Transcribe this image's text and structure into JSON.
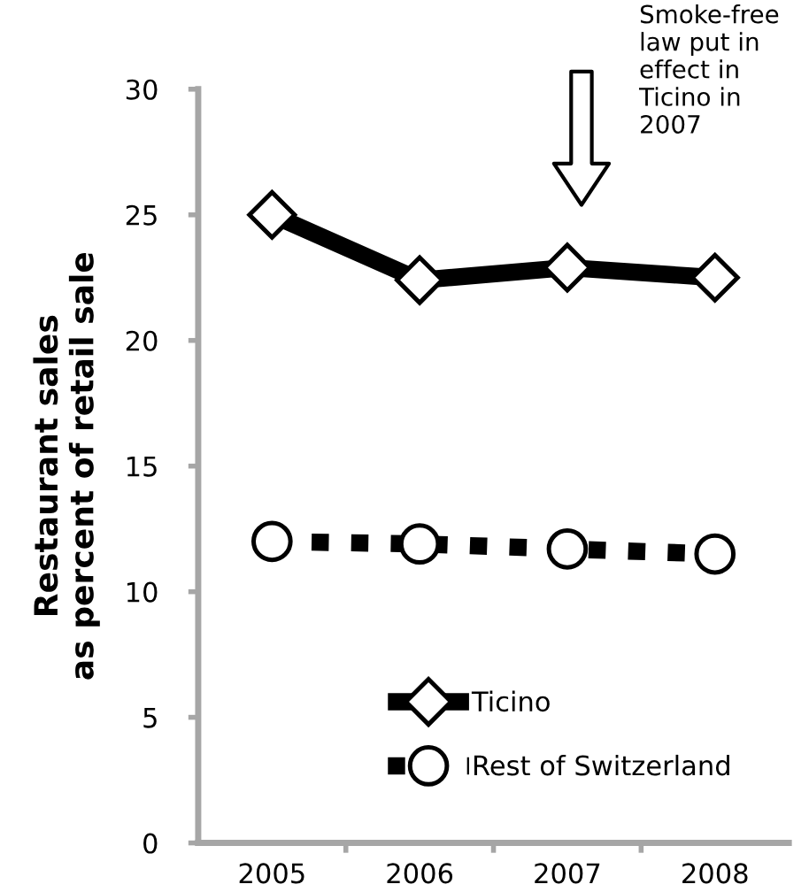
{
  "chart_data": {
    "type": "line",
    "ylabel": "Restaurant sales\nas percent of retail sale",
    "categories": [
      "2005",
      "2006",
      "2007",
      "2008"
    ],
    "series": [
      {
        "name": "Ticino",
        "color": "#000000",
        "values": [
          25.0,
          22.4,
          22.9,
          22.5
        ],
        "marker": "diamond",
        "line_style": "solid"
      },
      {
        "name": "Rest of Switzerland",
        "color": "#000000",
        "values": [
          12.0,
          11.9,
          11.7,
          11.5
        ],
        "marker": "circle",
        "line_style": "dotted"
      }
    ],
    "ylim": [
      0,
      30
    ],
    "yticks": [
      0,
      5,
      10,
      15,
      20,
      25,
      30
    ],
    "grid": false,
    "legend": "bottom",
    "annotations": [
      "Smoke-free\nlaw put in\neffect in\nTicino in\n2007"
    ]
  }
}
